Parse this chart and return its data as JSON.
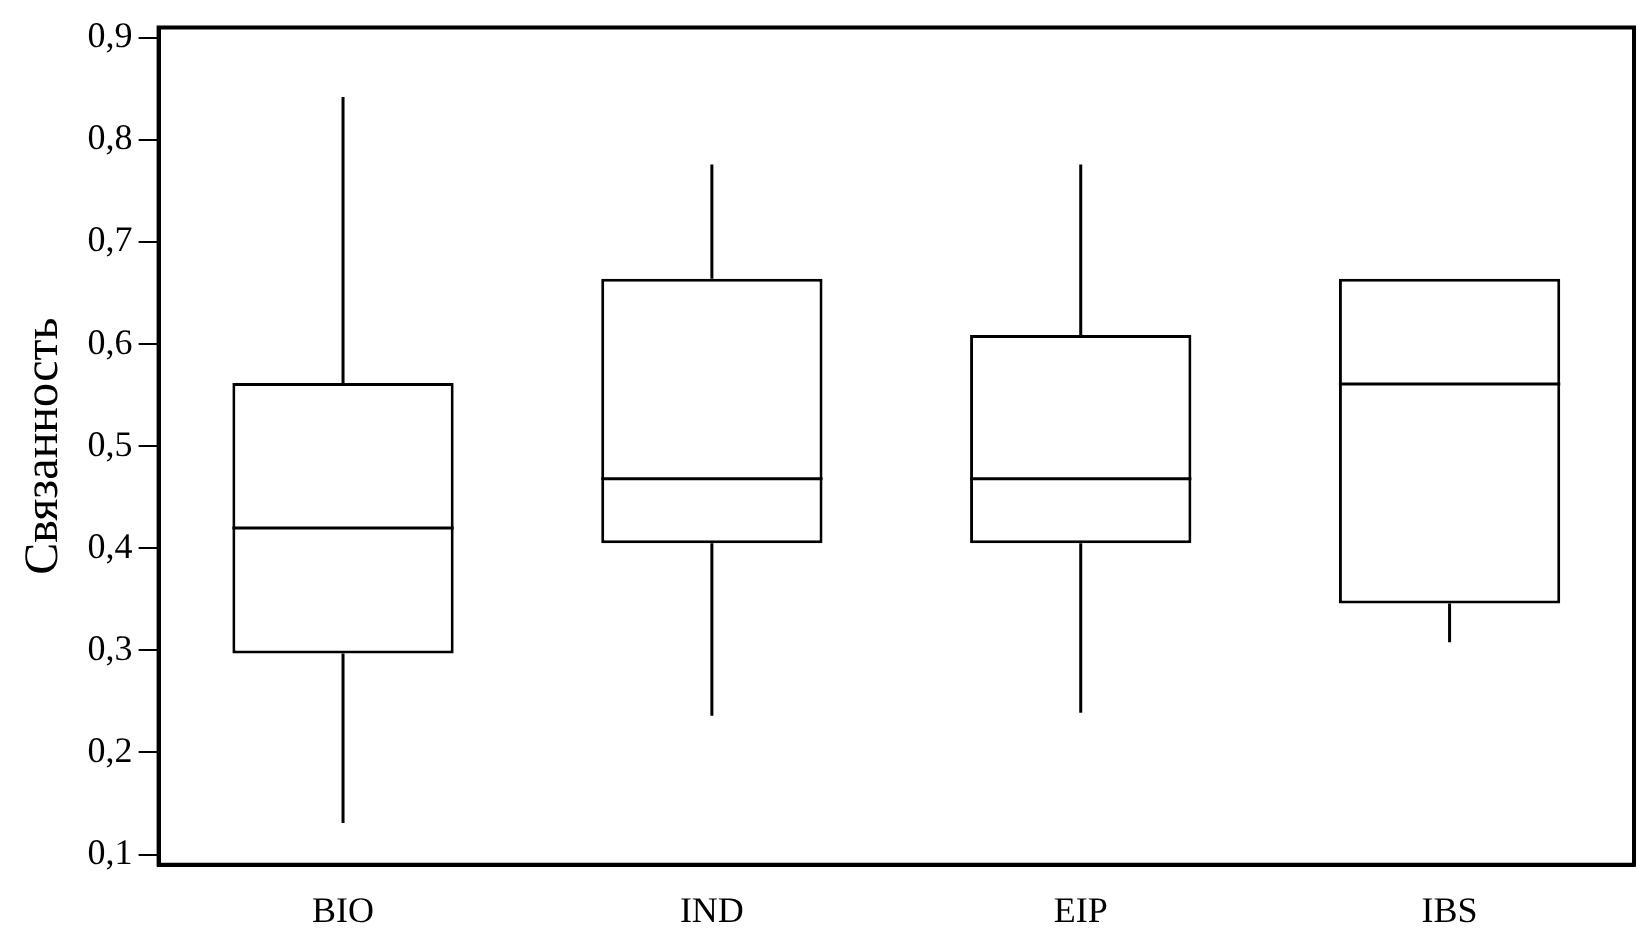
{
  "chart_data": {
    "type": "box",
    "ylabel": "Связанность",
    "categories": [
      "BIO",
      "IND",
      "EIP",
      "IBS"
    ],
    "boxes": [
      {
        "low": 0.131,
        "q1": 0.297,
        "median": 0.42,
        "q3": 0.562,
        "high": 0.842
      },
      {
        "low": 0.236,
        "q1": 0.405,
        "median": 0.468,
        "q3": 0.664,
        "high": 0.776
      },
      {
        "low": 0.239,
        "q1": 0.405,
        "median": 0.468,
        "q3": 0.609,
        "high": 0.776
      },
      {
        "low": 0.308,
        "q1": 0.346,
        "median": 0.561,
        "q3": 0.664,
        "high": 0.664
      }
    ],
    "color": "#000000",
    "ylim": [
      0.09,
      0.91
    ],
    "yticks": [
      {
        "value": 0.1,
        "label": "0,1"
      },
      {
        "value": 0.2,
        "label": "0,2"
      },
      {
        "value": 0.3,
        "label": "0,3"
      },
      {
        "value": 0.4,
        "label": "0,4"
      },
      {
        "value": 0.5,
        "label": "0,5"
      },
      {
        "value": 0.6,
        "label": "0,6"
      },
      {
        "value": 0.7,
        "label": "0,7"
      },
      {
        "value": 0.8,
        "label": "0,8"
      },
      {
        "value": 0.9,
        "label": "0,9"
      }
    ],
    "grid": false,
    "legend": false
  }
}
